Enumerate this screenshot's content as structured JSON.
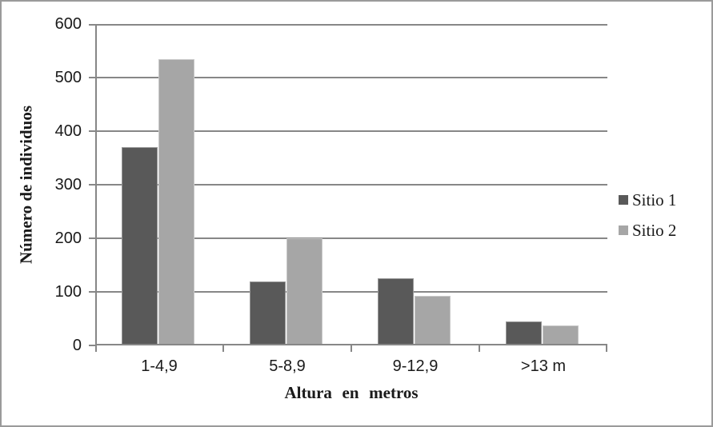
{
  "chart_data": {
    "type": "bar",
    "title": "",
    "categories": [
      "1-4,9",
      "5-8,9",
      "9-12,9",
      ">13 m"
    ],
    "series": [
      {
        "name": "Sitio 1",
        "color": "#595959",
        "values": [
          370,
          120,
          125,
          45
        ]
      },
      {
        "name": "Sitio 2",
        "color": "#a6a6a6",
        "values": [
          535,
          200,
          92,
          38
        ]
      }
    ],
    "xlabel": "Altura en metros",
    "ylabel": "Número de individuos",
    "ylim": [
      0,
      600
    ],
    "yticks": [
      0,
      100,
      200,
      300,
      400,
      500,
      600
    ],
    "grid": true,
    "legend_position": "right"
  },
  "colors": {
    "axis": "#878787",
    "grid": "#878787",
    "text": "#1a1a1a",
    "frame_border": "#9a9a9a",
    "background": "#ffffff"
  }
}
